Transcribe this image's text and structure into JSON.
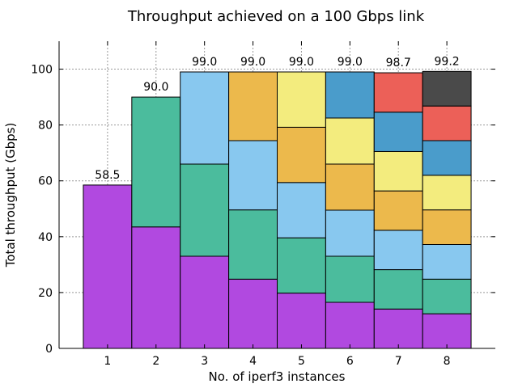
{
  "chart_data": {
    "type": "bar",
    "stacked": true,
    "title": "Throughput achieved on a 100 Gbps link",
    "xlabel": "No. of iperf3 instances",
    "ylabel": "Total throughput (Gbps)",
    "ylim": [
      0,
      110
    ],
    "yticks": [
      0,
      20,
      40,
      60,
      80,
      100
    ],
    "grid": true,
    "categories": [
      "1",
      "2",
      "3",
      "4",
      "5",
      "6",
      "7",
      "8"
    ],
    "totals": [
      58.5,
      90.0,
      99.0,
      99.0,
      99.0,
      99.0,
      98.7,
      99.2
    ],
    "total_labels": [
      "58.5",
      "90.0",
      "99.0",
      "99.0",
      "99.0",
      "99.0",
      "98.7",
      "99.2"
    ],
    "segment_colors": [
      "#b149e0",
      "#4bbc9d",
      "#88c8ef",
      "#ecb94c",
      "#f3ec7e",
      "#4a9ccb",
      "#ec6058",
      "#4a4a4a"
    ],
    "segments": [
      [
        58.5
      ],
      [
        43.5,
        46.5
      ],
      [
        33.0,
        33.0,
        33.0
      ],
      [
        24.8,
        24.8,
        24.8,
        24.6
      ],
      [
        19.8,
        19.8,
        19.8,
        19.8,
        19.8
      ],
      [
        16.5,
        16.5,
        16.5,
        16.5,
        16.5,
        16.5
      ],
      [
        14.1,
        14.1,
        14.1,
        14.1,
        14.1,
        14.1,
        14.1
      ],
      [
        12.4,
        12.4,
        12.4,
        12.4,
        12.4,
        12.4,
        12.4,
        12.4
      ]
    ]
  }
}
